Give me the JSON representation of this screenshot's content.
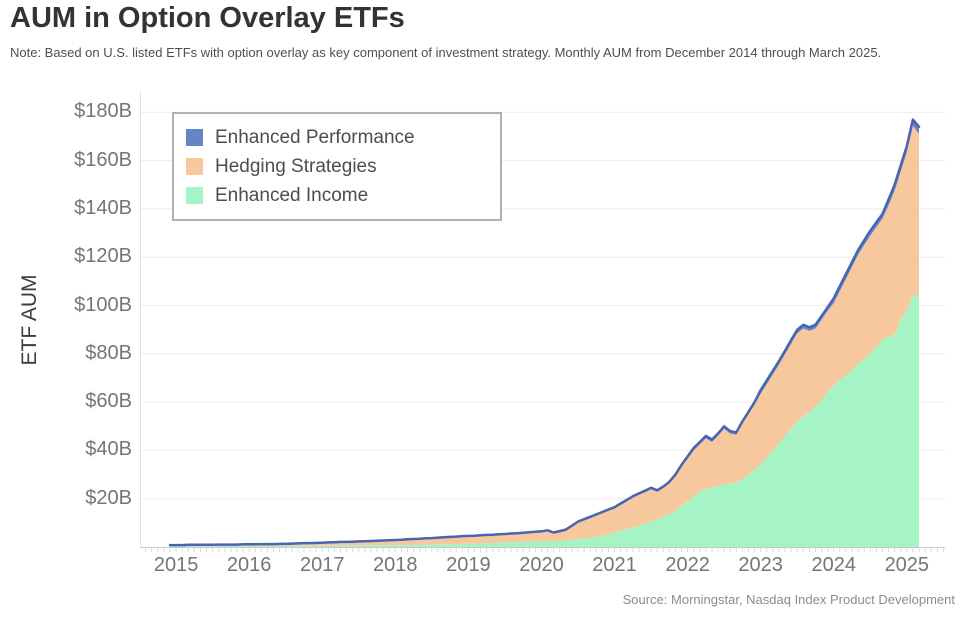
{
  "header": {
    "title": "AUM in Option Overlay ETFs",
    "note": "Note: Based on U.S. listed ETFs with option overlay as key component of investment strategy. Monthly AUM from December 2014 through March 2025."
  },
  "source": "Source: Morningstar, Nasdaq Index Product Development",
  "y_axis": {
    "label": "ETF AUM",
    "ticks": [
      {
        "value": 20,
        "label": "$20B"
      },
      {
        "value": 40,
        "label": "$40B"
      },
      {
        "value": 60,
        "label": "$60B"
      },
      {
        "value": 80,
        "label": "$80B"
      },
      {
        "value": 100,
        "label": "$100B"
      },
      {
        "value": 120,
        "label": "$120B"
      },
      {
        "value": 140,
        "label": "$140B"
      },
      {
        "value": 160,
        "label": "$160B"
      },
      {
        "value": 180,
        "label": "$180B"
      }
    ]
  },
  "x_axis": {
    "ticks": [
      "2015",
      "2016",
      "2017",
      "2018",
      "2019",
      "2020",
      "2021",
      "2022",
      "2023",
      "2024",
      "2025"
    ]
  },
  "legend": [
    {
      "label": "Enhanced Performance",
      "color": "#6585c6"
    },
    {
      "label": "Hedging Strategies",
      "color": "#f7c79e"
    },
    {
      "label": "Enhanced Income",
      "color": "#a6f4c5"
    }
  ],
  "colors": {
    "total_line": "#4766b0",
    "gridline": "#ececec",
    "axis_bottom": "#c9c9c9",
    "axis_left": "#e0e0e0",
    "month_tick": "#d8d8d8"
  },
  "chart_data": {
    "type": "area",
    "stacked": true,
    "title": "AUM in Option Overlay ETFs",
    "ylabel": "ETF AUM",
    "unit": "USD billions",
    "x_start": "2014-12",
    "x_end": "2025-03",
    "frequency": "monthly",
    "ylim": [
      0,
      188
    ],
    "legend_position": "top-left",
    "grid": "horizontal",
    "series": [
      {
        "name": "Enhanced Income",
        "color": "#a6f4c5",
        "values": [
          0.3,
          0.3,
          0.3,
          0.3,
          0.3,
          0.3,
          0.3,
          0.3,
          0.3,
          0.4,
          0.4,
          0.4,
          0.4,
          0.4,
          0.4,
          0.4,
          0.4,
          0.4,
          0.5,
          0.5,
          0.5,
          0.5,
          0.5,
          0.5,
          0.5,
          0.5,
          0.5,
          0.6,
          0.6,
          0.6,
          0.6,
          0.7,
          0.7,
          0.7,
          0.7,
          0.8,
          0.8,
          0.8,
          0.8,
          0.9,
          0.9,
          1.0,
          1.0,
          1.1,
          1.1,
          1.1,
          1.2,
          1.2,
          1.3,
          1.3,
          1.4,
          1.5,
          1.6,
          1.7,
          1.8,
          1.9,
          2.0,
          2.1,
          2.2,
          2.3,
          2.4,
          2.5,
          2.5,
          2.4,
          2.6,
          2.8,
          3.0,
          3.2,
          3.5,
          3.7,
          4.0,
          4.7,
          5.3,
          6.0,
          6.7,
          7.3,
          8.0,
          8.8,
          9.7,
          10.5,
          11.5,
          12.5,
          13.5,
          15.3,
          17.0,
          19.0,
          20.5,
          23.4,
          24.0,
          24.5,
          25.3,
          26.0,
          26.3,
          26.5,
          28.3,
          30.0,
          32.0,
          34.0,
          37.0,
          40.0,
          43.0,
          46.0,
          49.0,
          52.0,
          54.0,
          56.0,
          58.0,
          61.0,
          64.0,
          67.0,
          69.0,
          71.0,
          73.5,
          76.0,
          78.0,
          80.0,
          83.0,
          86.0,
          87.0,
          88.0,
          94.0,
          98.0,
          104.5,
          103.5
        ]
      },
      {
        "name": "Hedging Strategies",
        "color": "#f7c79e",
        "values": [
          0.4,
          0.4,
          0.4,
          0.5,
          0.5,
          0.5,
          0.5,
          0.5,
          0.6,
          0.5,
          0.5,
          0.5,
          0.6,
          0.6,
          0.6,
          0.7,
          0.7,
          0.7,
          0.7,
          0.7,
          0.8,
          0.9,
          1.0,
          1.0,
          1.1,
          1.2,
          1.3,
          1.3,
          1.4,
          1.4,
          1.5,
          1.5,
          1.6,
          1.7,
          1.8,
          1.8,
          1.9,
          1.9,
          2.0,
          2.1,
          2.2,
          2.2,
          2.4,
          2.4,
          2.6,
          2.7,
          2.8,
          2.9,
          3.0,
          3.0,
          3.0,
          3.1,
          3.1,
          3.1,
          3.2,
          3.2,
          3.3,
          3.3,
          3.4,
          3.5,
          3.6,
          3.6,
          4.0,
          3.2,
          3.6,
          4.0,
          5.4,
          6.9,
          7.6,
          8.4,
          9.1,
          9.4,
          9.8,
          9.9,
          10.7,
          11.6,
          12.4,
          12.8,
          13.0,
          13.4,
          11.4,
          11.9,
          12.9,
          14.1,
          16.4,
          17.5,
          19.5,
          19.1,
          21.0,
          19.0,
          20.7,
          23.0,
          20.7,
          20.0,
          22.7,
          25.0,
          27.0,
          29.5,
          30.5,
          31.5,
          32.5,
          33.8,
          35.2,
          36.5,
          36.5,
          33.5,
          32.5,
          33.2,
          33.8,
          34.0,
          37.0,
          40.0,
          42.5,
          45.0,
          47.0,
          49.0,
          49.5,
          50.0,
          54.5,
          59.5,
          61.5,
          65.5,
          70.0,
          67.5
        ]
      },
      {
        "name": "Enhanced Performance",
        "color": "#6585c6",
        "line_color": "#4766b0",
        "values": [
          0.1,
          0.1,
          0.1,
          0.1,
          0.1,
          0.1,
          0.1,
          0.1,
          0.1,
          0.1,
          0.1,
          0.1,
          0.1,
          0.1,
          0.1,
          0.1,
          0.1,
          0.1,
          0.1,
          0.1,
          0.1,
          0.1,
          0.1,
          0.1,
          0.1,
          0.1,
          0.1,
          0.1,
          0.1,
          0.1,
          0.1,
          0.1,
          0.1,
          0.1,
          0.1,
          0.1,
          0.1,
          0.2,
          0.2,
          0.2,
          0.2,
          0.2,
          0.2,
          0.2,
          0.2,
          0.2,
          0.2,
          0.2,
          0.2,
          0.3,
          0.3,
          0.3,
          0.3,
          0.3,
          0.3,
          0.3,
          0.3,
          0.3,
          0.3,
          0.3,
          0.3,
          0.4,
          0.4,
          0.4,
          0.4,
          0.4,
          0.4,
          0.4,
          0.4,
          0.4,
          0.4,
          0.4,
          0.4,
          0.6,
          0.6,
          0.6,
          0.6,
          0.6,
          0.6,
          0.6,
          0.6,
          0.6,
          0.6,
          0.6,
          0.6,
          1.0,
          1.0,
          1.0,
          1.0,
          1.0,
          1.0,
          1.0,
          1.0,
          1.0,
          1.0,
          1.0,
          1.0,
          1.5,
          1.5,
          1.5,
          1.5,
          1.5,
          1.5,
          1.5,
          1.5,
          1.5,
          1.5,
          1.5,
          1.5,
          2.0,
          2.0,
          2.0,
          2.0,
          2.0,
          2.0,
          2.0,
          2.0,
          2.0,
          2.5,
          2.5,
          2.5,
          2.5,
          2.5,
          3.0
        ]
      }
    ]
  }
}
